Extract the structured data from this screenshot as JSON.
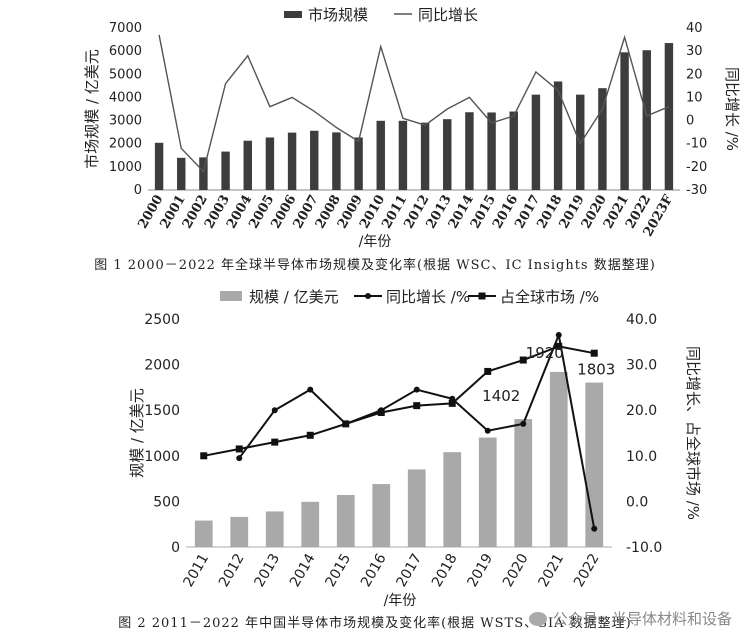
{
  "chart_data": [
    {
      "type": "bar+line",
      "caption": "图 1  2000－2022 年全球半导体市场规模及变化率(根据 WSC、IC Insights 数据整理)",
      "legend": [
        "市场规模",
        "同比增长"
      ],
      "xlabel": "/年份",
      "ylabel_left": "市场规模 / 亿美元",
      "ylabel_right": "同比增长 /%",
      "ylim_left": [
        0,
        7000
      ],
      "ylim_right": [
        -30,
        40
      ],
      "yticks_left": [
        0,
        1000,
        2000,
        3000,
        4000,
        5000,
        6000,
        7000
      ],
      "yticks_right": [
        -30,
        -20,
        -10,
        0,
        10,
        20,
        30,
        40
      ],
      "categories": [
        "2000",
        "2001",
        "2002",
        "2003",
        "2004",
        "2005",
        "2006",
        "2007",
        "2008",
        "2009",
        "2010",
        "2011",
        "2012",
        "2013",
        "2014",
        "2015",
        "2016",
        "2017",
        "2018",
        "2019",
        "2020",
        "2021",
        "2022",
        "2023F"
      ],
      "series": [
        {
          "name": "市场规模",
          "kind": "bar",
          "axis": "left",
          "values": [
            2040,
            1390,
            1410,
            1660,
            2130,
            2270,
            2480,
            2560,
            2490,
            2270,
            2990,
            2990,
            2910,
            3060,
            3360,
            3350,
            3390,
            4120,
            4690,
            4120,
            4400,
            5950,
            6040,
            6350
          ]
        },
        {
          "name": "同比增长",
          "kind": "line",
          "axis": "right",
          "values": [
            37,
            -12,
            -22,
            16,
            28,
            6,
            10,
            4,
            -3,
            -9,
            32,
            1,
            -2,
            5,
            10,
            -1,
            2,
            21,
            13,
            -10,
            5,
            36,
            2,
            6
          ]
        }
      ],
      "colors": {
        "bar": "#3d3d3d",
        "line": "#555555"
      }
    },
    {
      "type": "bar+line",
      "caption": "图 2  2011－2022 年中国半导体市场规模及变化率(根据 WSTS、SIA 数据整理)",
      "legend": [
        "规模 / 亿美元",
        "同比增长 /%",
        "占全球市场 /%"
      ],
      "xlabel": "/年份",
      "ylabel_left": "规模 / 亿美元",
      "ylabel_right": "同比增长、占全球市场 /%",
      "ylim_left": [
        0,
        2500
      ],
      "ylim_right": [
        -10,
        40
      ],
      "yticks_left": [
        0,
        500,
        1000,
        1500,
        2000,
        2500
      ],
      "yticks_right": [
        "-10.0",
        "0.0",
        "10.0",
        "20.0",
        "30.0",
        "40.0"
      ],
      "categories": [
        "2011",
        "2012",
        "2013",
        "2014",
        "2015",
        "2016",
        "2017",
        "2018",
        "2019",
        "2020",
        "2021",
        "2022"
      ],
      "series": [
        {
          "name": "规模 / 亿美元",
          "kind": "bar",
          "axis": "left",
          "values": [
            290,
            330,
            390,
            495,
            570,
            690,
            850,
            1040,
            1200,
            1402,
            1920,
            1803
          ]
        },
        {
          "name": "同比增长 /%",
          "kind": "line",
          "axis": "right",
          "marker": "circle",
          "values": [
            null,
            9.5,
            20,
            24.5,
            17,
            20,
            24.5,
            22.5,
            15.5,
            17,
            36.5,
            -6
          ]
        },
        {
          "name": "占全球市场 /%",
          "kind": "line",
          "axis": "right",
          "marker": "square",
          "values": [
            10,
            11.5,
            13,
            14.5,
            17,
            19.5,
            21,
            21.5,
            28.5,
            31,
            34,
            32.5
          ]
        }
      ],
      "annotations": [
        "1402",
        "1920",
        "1803"
      ],
      "colors": {
        "bar": "#a9a9a9",
        "line": "#111111"
      }
    }
  ],
  "watermark": "公众号 · 半导体材料和设备"
}
